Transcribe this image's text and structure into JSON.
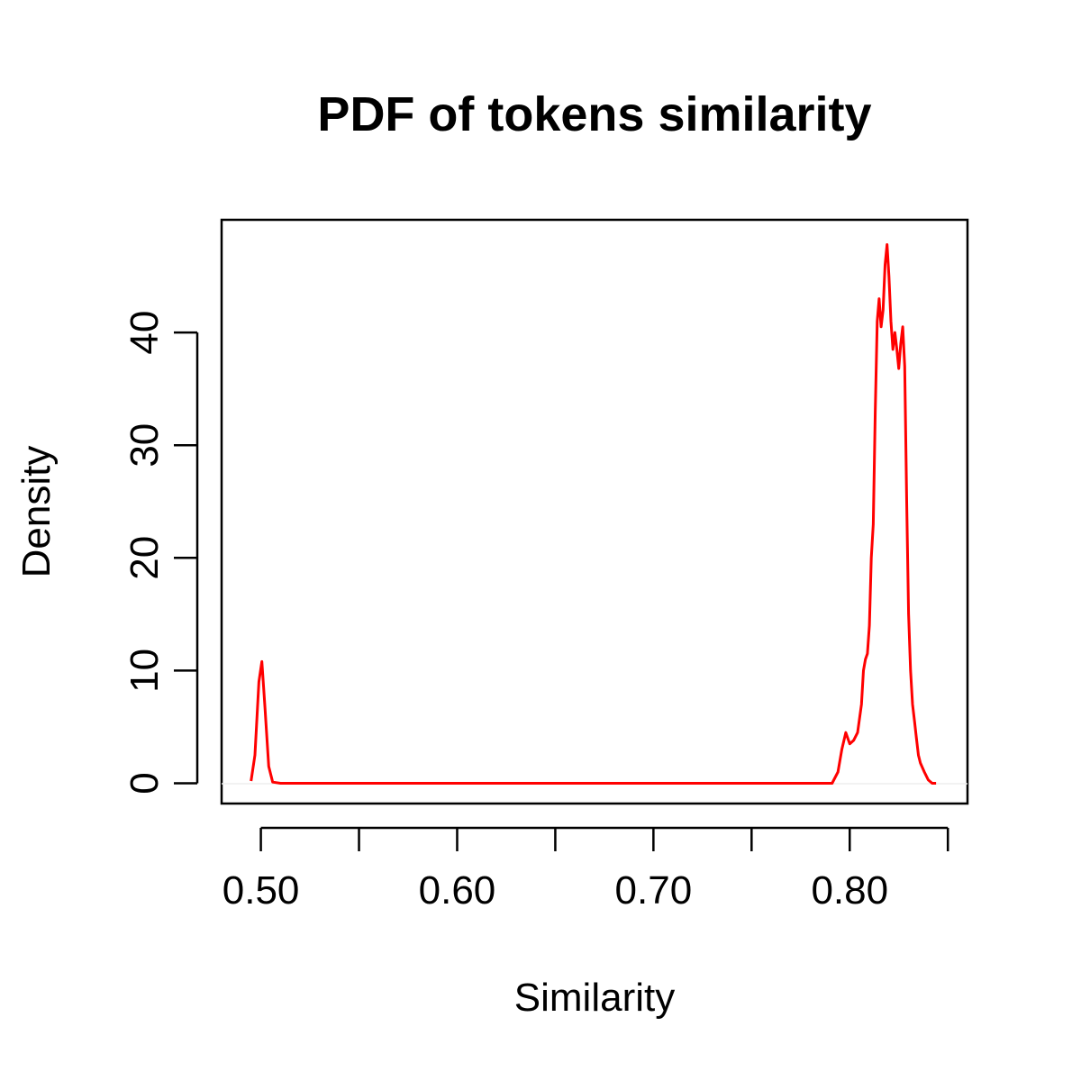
{
  "chart_data": {
    "type": "line",
    "title": "PDF of tokens similarity",
    "xlabel": "Similarity",
    "ylabel": "Density",
    "xlim": [
      0.48,
      0.86
    ],
    "ylim": [
      -1.8,
      50
    ],
    "x_ticks": [
      0.5,
      0.55,
      0.6,
      0.65,
      0.7,
      0.75,
      0.8,
      0.85
    ],
    "x_tick_labels": [
      "0.50",
      "",
      "0.60",
      "",
      "0.70",
      "",
      "0.80",
      ""
    ],
    "y_ticks": [
      0,
      10,
      20,
      30,
      40
    ],
    "y_tick_labels": [
      "0",
      "10",
      "20",
      "30",
      "40"
    ],
    "grid": false,
    "line_color": "#ff0000",
    "series": [
      {
        "x": [
          0.495,
          0.497,
          0.499,
          0.5005,
          0.502,
          0.504,
          0.506,
          0.51,
          0.52,
          0.6,
          0.7,
          0.791,
          0.794,
          0.796,
          0.798,
          0.8,
          0.802,
          0.804,
          0.806,
          0.807,
          0.808,
          0.809,
          0.81,
          0.811,
          0.812,
          0.813,
          0.814,
          0.815,
          0.816,
          0.817,
          0.818,
          0.819,
          0.82,
          0.821,
          0.822,
          0.823,
          0.824,
          0.825,
          0.826,
          0.827,
          0.828,
          0.829,
          0.83,
          0.831,
          0.832,
          0.833,
          0.834,
          0.835,
          0.836,
          0.838,
          0.84,
          0.842,
          0.844
        ],
        "y": [
          0.2,
          2.5,
          9.0,
          10.8,
          7.0,
          1.5,
          0.1,
          0.0,
          0.0,
          0.0,
          0.0,
          0.0,
          1.0,
          3.0,
          4.5,
          3.5,
          3.8,
          4.5,
          7.0,
          10.0,
          11.0,
          11.5,
          14.0,
          20.0,
          23.0,
          33.0,
          41.0,
          43.0,
          40.5,
          42.0,
          46.0,
          47.8,
          45.0,
          41.0,
          38.5,
          40.0,
          38.5,
          36.8,
          39.0,
          40.5,
          37.0,
          25.0,
          15.0,
          10.0,
          7.0,
          5.5,
          4.0,
          2.5,
          1.8,
          1.0,
          0.3,
          0.0,
          0.0
        ]
      }
    ]
  }
}
